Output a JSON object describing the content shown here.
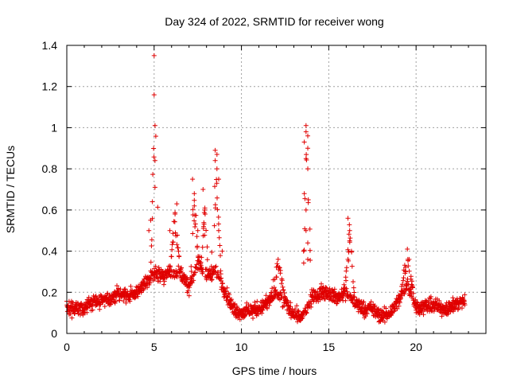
{
  "chart_data": {
    "type": "scatter",
    "title": "Day 324 of 2022, SRMTID for receiver wong",
    "xlabel": "GPS time / hours",
    "ylabel": "SRMTID / TECUs",
    "xlim": [
      0,
      24
    ],
    "ylim": [
      0,
      1.4
    ],
    "xticks": [
      0,
      5,
      10,
      15,
      20
    ],
    "xtick_labels": [
      "0",
      "5",
      "10",
      "15",
      "20"
    ],
    "yticks": [
      0,
      0.2,
      0.4,
      0.6,
      0.8,
      1,
      1.2,
      1.4
    ],
    "ytick_labels": [
      "0",
      "0.2",
      "0.4",
      "0.6",
      "0.8",
      "1",
      "1.2",
      "1.4"
    ],
    "grid": true,
    "marker": "+",
    "color": "#e00000",
    "x_range": [
      0.0,
      22.8
    ],
    "baseline_profile": [
      [
        0.0,
        0.12
      ],
      [
        0.5,
        0.12
      ],
      [
        1.0,
        0.12
      ],
      [
        1.5,
        0.15
      ],
      [
        2.0,
        0.16
      ],
      [
        2.5,
        0.16
      ],
      [
        3.0,
        0.2
      ],
      [
        3.5,
        0.18
      ],
      [
        4.0,
        0.2
      ],
      [
        4.5,
        0.24
      ],
      [
        5.0,
        0.3
      ],
      [
        5.5,
        0.28
      ],
      [
        6.0,
        0.3
      ],
      [
        6.5,
        0.3
      ],
      [
        7.0,
        0.22
      ],
      [
        7.5,
        0.35
      ],
      [
        8.0,
        0.28
      ],
      [
        8.5,
        0.3
      ],
      [
        9.0,
        0.22
      ],
      [
        9.5,
        0.12
      ],
      [
        10.0,
        0.1
      ],
      [
        10.5,
        0.11
      ],
      [
        11.0,
        0.12
      ],
      [
        11.5,
        0.15
      ],
      [
        12.0,
        0.2
      ],
      [
        12.5,
        0.14
      ],
      [
        13.0,
        0.1
      ],
      [
        13.5,
        0.08
      ],
      [
        14.0,
        0.17
      ],
      [
        14.5,
        0.2
      ],
      [
        15.0,
        0.2
      ],
      [
        15.5,
        0.17
      ],
      [
        16.0,
        0.2
      ],
      [
        16.5,
        0.15
      ],
      [
        17.0,
        0.12
      ],
      [
        17.5,
        0.12
      ],
      [
        18.0,
        0.08
      ],
      [
        18.5,
        0.1
      ],
      [
        19.0,
        0.16
      ],
      [
        19.5,
        0.24
      ],
      [
        20.0,
        0.13
      ],
      [
        20.5,
        0.13
      ],
      [
        21.0,
        0.14
      ],
      [
        21.5,
        0.12
      ],
      [
        22.0,
        0.13
      ],
      [
        22.5,
        0.15
      ],
      [
        22.8,
        0.16
      ]
    ],
    "highlighted_points": [
      {
        "x": 5.0,
        "y": 1.35
      },
      {
        "x": 5.0,
        "y": 1.16
      },
      {
        "x": 5.05,
        "y": 1.01
      },
      {
        "x": 5.05,
        "y": 0.84
      },
      {
        "x": 5.05,
        "y": 0.71
      },
      {
        "x": 4.9,
        "y": 0.64
      },
      {
        "x": 4.8,
        "y": 0.55
      },
      {
        "x": 4.7,
        "y": 0.5
      },
      {
        "x": 6.3,
        "y": 0.63
      },
      {
        "x": 6.2,
        "y": 0.58
      },
      {
        "x": 5.9,
        "y": 0.5
      },
      {
        "x": 7.2,
        "y": 0.75
      },
      {
        "x": 7.3,
        "y": 0.68
      },
      {
        "x": 7.3,
        "y": 0.62
      },
      {
        "x": 7.8,
        "y": 0.7
      },
      {
        "x": 7.9,
        "y": 0.6
      },
      {
        "x": 7.5,
        "y": 0.5
      },
      {
        "x": 8.5,
        "y": 0.89
      },
      {
        "x": 8.6,
        "y": 0.87
      },
      {
        "x": 8.5,
        "y": 0.84
      },
      {
        "x": 8.6,
        "y": 0.8
      },
      {
        "x": 8.7,
        "y": 0.75
      },
      {
        "x": 8.7,
        "y": 0.5
      },
      {
        "x": 8.9,
        "y": 0.4
      },
      {
        "x": 12.1,
        "y": 0.36
      },
      {
        "x": 13.7,
        "y": 1.01
      },
      {
        "x": 13.7,
        "y": 0.98
      },
      {
        "x": 13.8,
        "y": 0.96
      },
      {
        "x": 13.6,
        "y": 0.93
      },
      {
        "x": 13.8,
        "y": 0.9
      },
      {
        "x": 13.7,
        "y": 0.85
      },
      {
        "x": 13.8,
        "y": 0.8
      },
      {
        "x": 13.6,
        "y": 0.68
      },
      {
        "x": 13.7,
        "y": 0.6
      },
      {
        "x": 13.7,
        "y": 0.5
      },
      {
        "x": 13.8,
        "y": 0.44
      },
      {
        "x": 13.8,
        "y": 0.36
      },
      {
        "x": 16.1,
        "y": 0.56
      },
      {
        "x": 16.2,
        "y": 0.5
      },
      {
        "x": 16.2,
        "y": 0.45
      },
      {
        "x": 16.3,
        "y": 0.4
      },
      {
        "x": 16.1,
        "y": 0.36
      },
      {
        "x": 19.5,
        "y": 0.41
      },
      {
        "x": 19.6,
        "y": 0.36
      },
      {
        "x": 19.4,
        "y": 0.3
      }
    ],
    "peaks": [
      {
        "center": 5.05,
        "height": 1.35,
        "width": 0.25
      },
      {
        "center": 6.2,
        "height": 0.62,
        "width": 0.3
      },
      {
        "center": 7.3,
        "height": 0.75,
        "width": 0.25
      },
      {
        "center": 7.9,
        "height": 0.62,
        "width": 0.25
      },
      {
        "center": 8.55,
        "height": 0.89,
        "width": 0.3
      },
      {
        "center": 12.1,
        "height": 0.36,
        "width": 0.5
      },
      {
        "center": 13.75,
        "height": 1.01,
        "width": 0.3
      },
      {
        "center": 16.2,
        "height": 0.56,
        "width": 0.3
      },
      {
        "center": 19.5,
        "height": 0.41,
        "width": 0.4
      }
    ]
  }
}
